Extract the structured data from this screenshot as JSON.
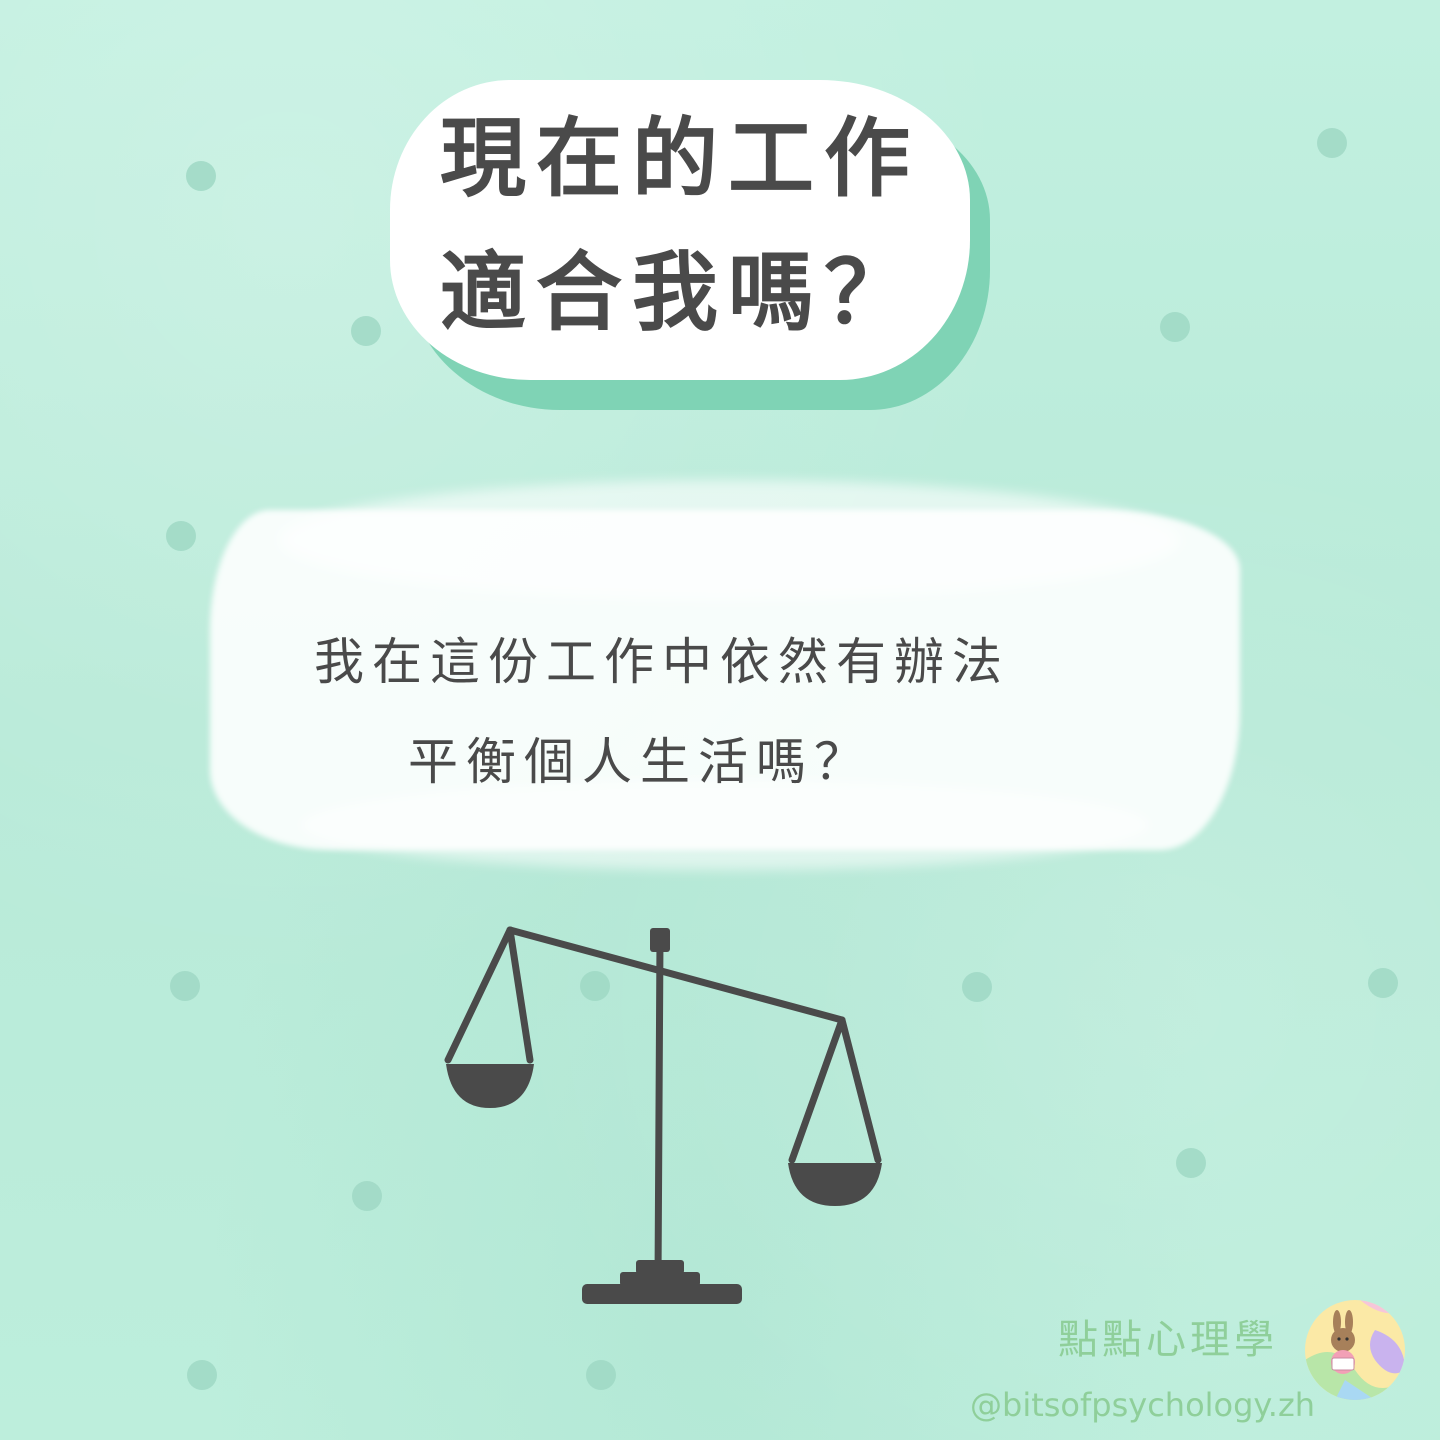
{
  "title": {
    "line1": "現在的工作",
    "line2": "適合我嗎？"
  },
  "question": {
    "line1": "我在這份工作中依然有辦法",
    "line2": "平衡個人生活嗎？"
  },
  "illustration": {
    "icon": "balance-scale-icon"
  },
  "footer": {
    "brand_name": "點點心理學",
    "handle": "@bitsofpsychology.zh",
    "logo_icon": "bunny-reading-logo"
  },
  "colors": {
    "background": "#bfeedd",
    "dot": "#9fd8c4",
    "ink": "#4a4a4a",
    "title_shadow": "#7fd3b5",
    "brand_green": "#8fcf9a"
  }
}
